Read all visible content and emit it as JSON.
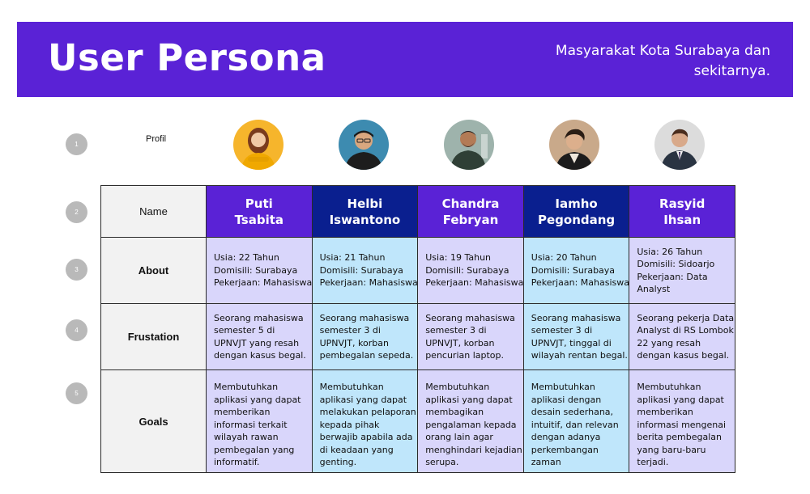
{
  "header": {
    "title": "User Persona",
    "subtitle_line1": "Masyarakat Kota Surabaya dan",
    "subtitle_line2": "sekitarnya."
  },
  "steps": [
    "1",
    "2",
    "3",
    "4",
    "5"
  ],
  "row_labels": {
    "profil": "Profil",
    "name": "Name",
    "about": "About",
    "frustation": "Frustation",
    "goals": "Goals"
  },
  "personas": [
    {
      "name_line1": "Puti",
      "name_line2": "Tsabita",
      "about": [
        "Usia: 22 Tahun",
        "Domisili: Surabaya",
        "Pekerjaan: Mahasiswa"
      ],
      "frustation": [
        "Seorang mahasiswa",
        "semester 5 di",
        "UPNVJT yang resah",
        "dengan kasus begal."
      ],
      "goals": [
        "Membutuhkan",
        "aplikasi yang dapat",
        "memberikan",
        "informasi terkait",
        "wilayah rawan",
        "pembegalan yang",
        "informatif."
      ]
    },
    {
      "name_line1": "Helbi",
      "name_line2": "Iswantono",
      "about": [
        "Usia: 21 Tahun",
        "Domisili: Surabaya",
        "Pekerjaan: Mahasiswa"
      ],
      "frustation": [
        "Seorang mahasiswa",
        "semester 3 di",
        "UPNVJT, korban",
        "pembegalan sepeda."
      ],
      "goals": [
        "Membutuhkan",
        "aplikasi yang dapat",
        "melakukan pelaporan",
        "kepada pihak",
        "berwajib apabila ada",
        "di keadaan yang",
        "genting."
      ]
    },
    {
      "name_line1": "Chandra",
      "name_line2": "Febryan",
      "about": [
        "Usia: 19 Tahun",
        "Domisili: Surabaya",
        "Pekerjaan: Mahasiswa"
      ],
      "frustation": [
        "Seorang mahasiswa",
        "semester 3 di",
        "UPNVJT, korban",
        "pencurian laptop."
      ],
      "goals": [
        "Membutuhkan",
        "aplikasi yang dapat",
        "membagikan",
        "pengalaman kepada",
        "orang lain agar",
        "menghindari kejadian",
        "serupa."
      ]
    },
    {
      "name_line1": "Iamho",
      "name_line2": "Pegondang",
      "about": [
        "Usia: 20 Tahun",
        "Domisili: Surabaya",
        "Pekerjaan: Mahasiswa"
      ],
      "frustation": [
        "Seorang mahasiswa",
        "semester 3 di",
        "UPNVJT, tinggal di",
        "wilayah rentan begal."
      ],
      "goals": [
        "Membutuhkan",
        "aplikasi dengan",
        "desain sederhana,",
        "intuitif, dan relevan",
        "dengan adanya",
        "perkembangan",
        "zaman"
      ]
    },
    {
      "name_line1": "Rasyid",
      "name_line2": "Ihsan",
      "about": [
        "Usia: 26 Tahun",
        "Domisili: Sidoarjo",
        "Pekerjaan: Data",
        "Analyst"
      ],
      "frustation": [
        "Seorang pekerja Data",
        "Analyst di RS Lombok",
        "22 yang resah",
        "dengan kasus begal."
      ],
      "goals": [
        "Membutuhkan",
        "aplikasi yang dapat",
        "memberikan",
        "informasi mengenai",
        "berita pembegalan",
        "yang baru-baru",
        "terjadi."
      ]
    }
  ],
  "colors": {
    "banner": "#5a22d6",
    "name_purple": "#5a22d6",
    "name_navy": "#0a1f8f",
    "cell_lavender": "#d9d6fb",
    "cell_sky": "#bfe6fb",
    "label_bg": "#f2f2f2",
    "step_circle": "#b9b9b9"
  },
  "icons": {
    "avatars": [
      "person-photo",
      "person-photo",
      "person-photo",
      "person-photo",
      "person-photo"
    ]
  }
}
